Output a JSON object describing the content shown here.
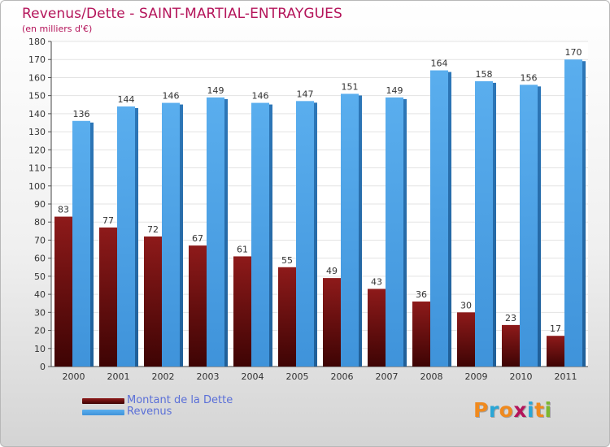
{
  "chart_data": {
    "type": "bar",
    "title": "Revenus/Dette - SAINT-MARTIAL-ENTRAYGUES",
    "subtitle": "(en milliers d'€)",
    "xlabel": "",
    "ylabel": "",
    "categories": [
      "2000",
      "2001",
      "2002",
      "2003",
      "2004",
      "2005",
      "2006",
      "2007",
      "2008",
      "2009",
      "2010",
      "2011"
    ],
    "series": [
      {
        "name": "Montant de la Dette",
        "color": "#6b0e0e",
        "values": [
          83,
          77,
          72,
          67,
          61,
          55,
          49,
          43,
          36,
          30,
          23,
          17
        ]
      },
      {
        "name": "Revenus",
        "color": "#4aa0e6",
        "values": [
          136,
          144,
          146,
          149,
          146,
          147,
          151,
          149,
          164,
          158,
          156,
          170
        ]
      }
    ],
    "ylim": [
      0,
      180
    ],
    "yticks": [
      0,
      10,
      20,
      30,
      40,
      50,
      60,
      70,
      80,
      90,
      100,
      110,
      120,
      130,
      140,
      150,
      160,
      170,
      180
    ],
    "grid": true,
    "legend_position": "bottom-left"
  },
  "branding": {
    "logo_letters": [
      "P",
      "r",
      "o",
      "x",
      "i",
      "t",
      "i"
    ],
    "logo_colors": [
      "#f08a1e",
      "#2aa6d6",
      "#f08a1e",
      "#b4145a",
      "#2aa6d6",
      "#f08a1e",
      "#7cb82f"
    ]
  }
}
